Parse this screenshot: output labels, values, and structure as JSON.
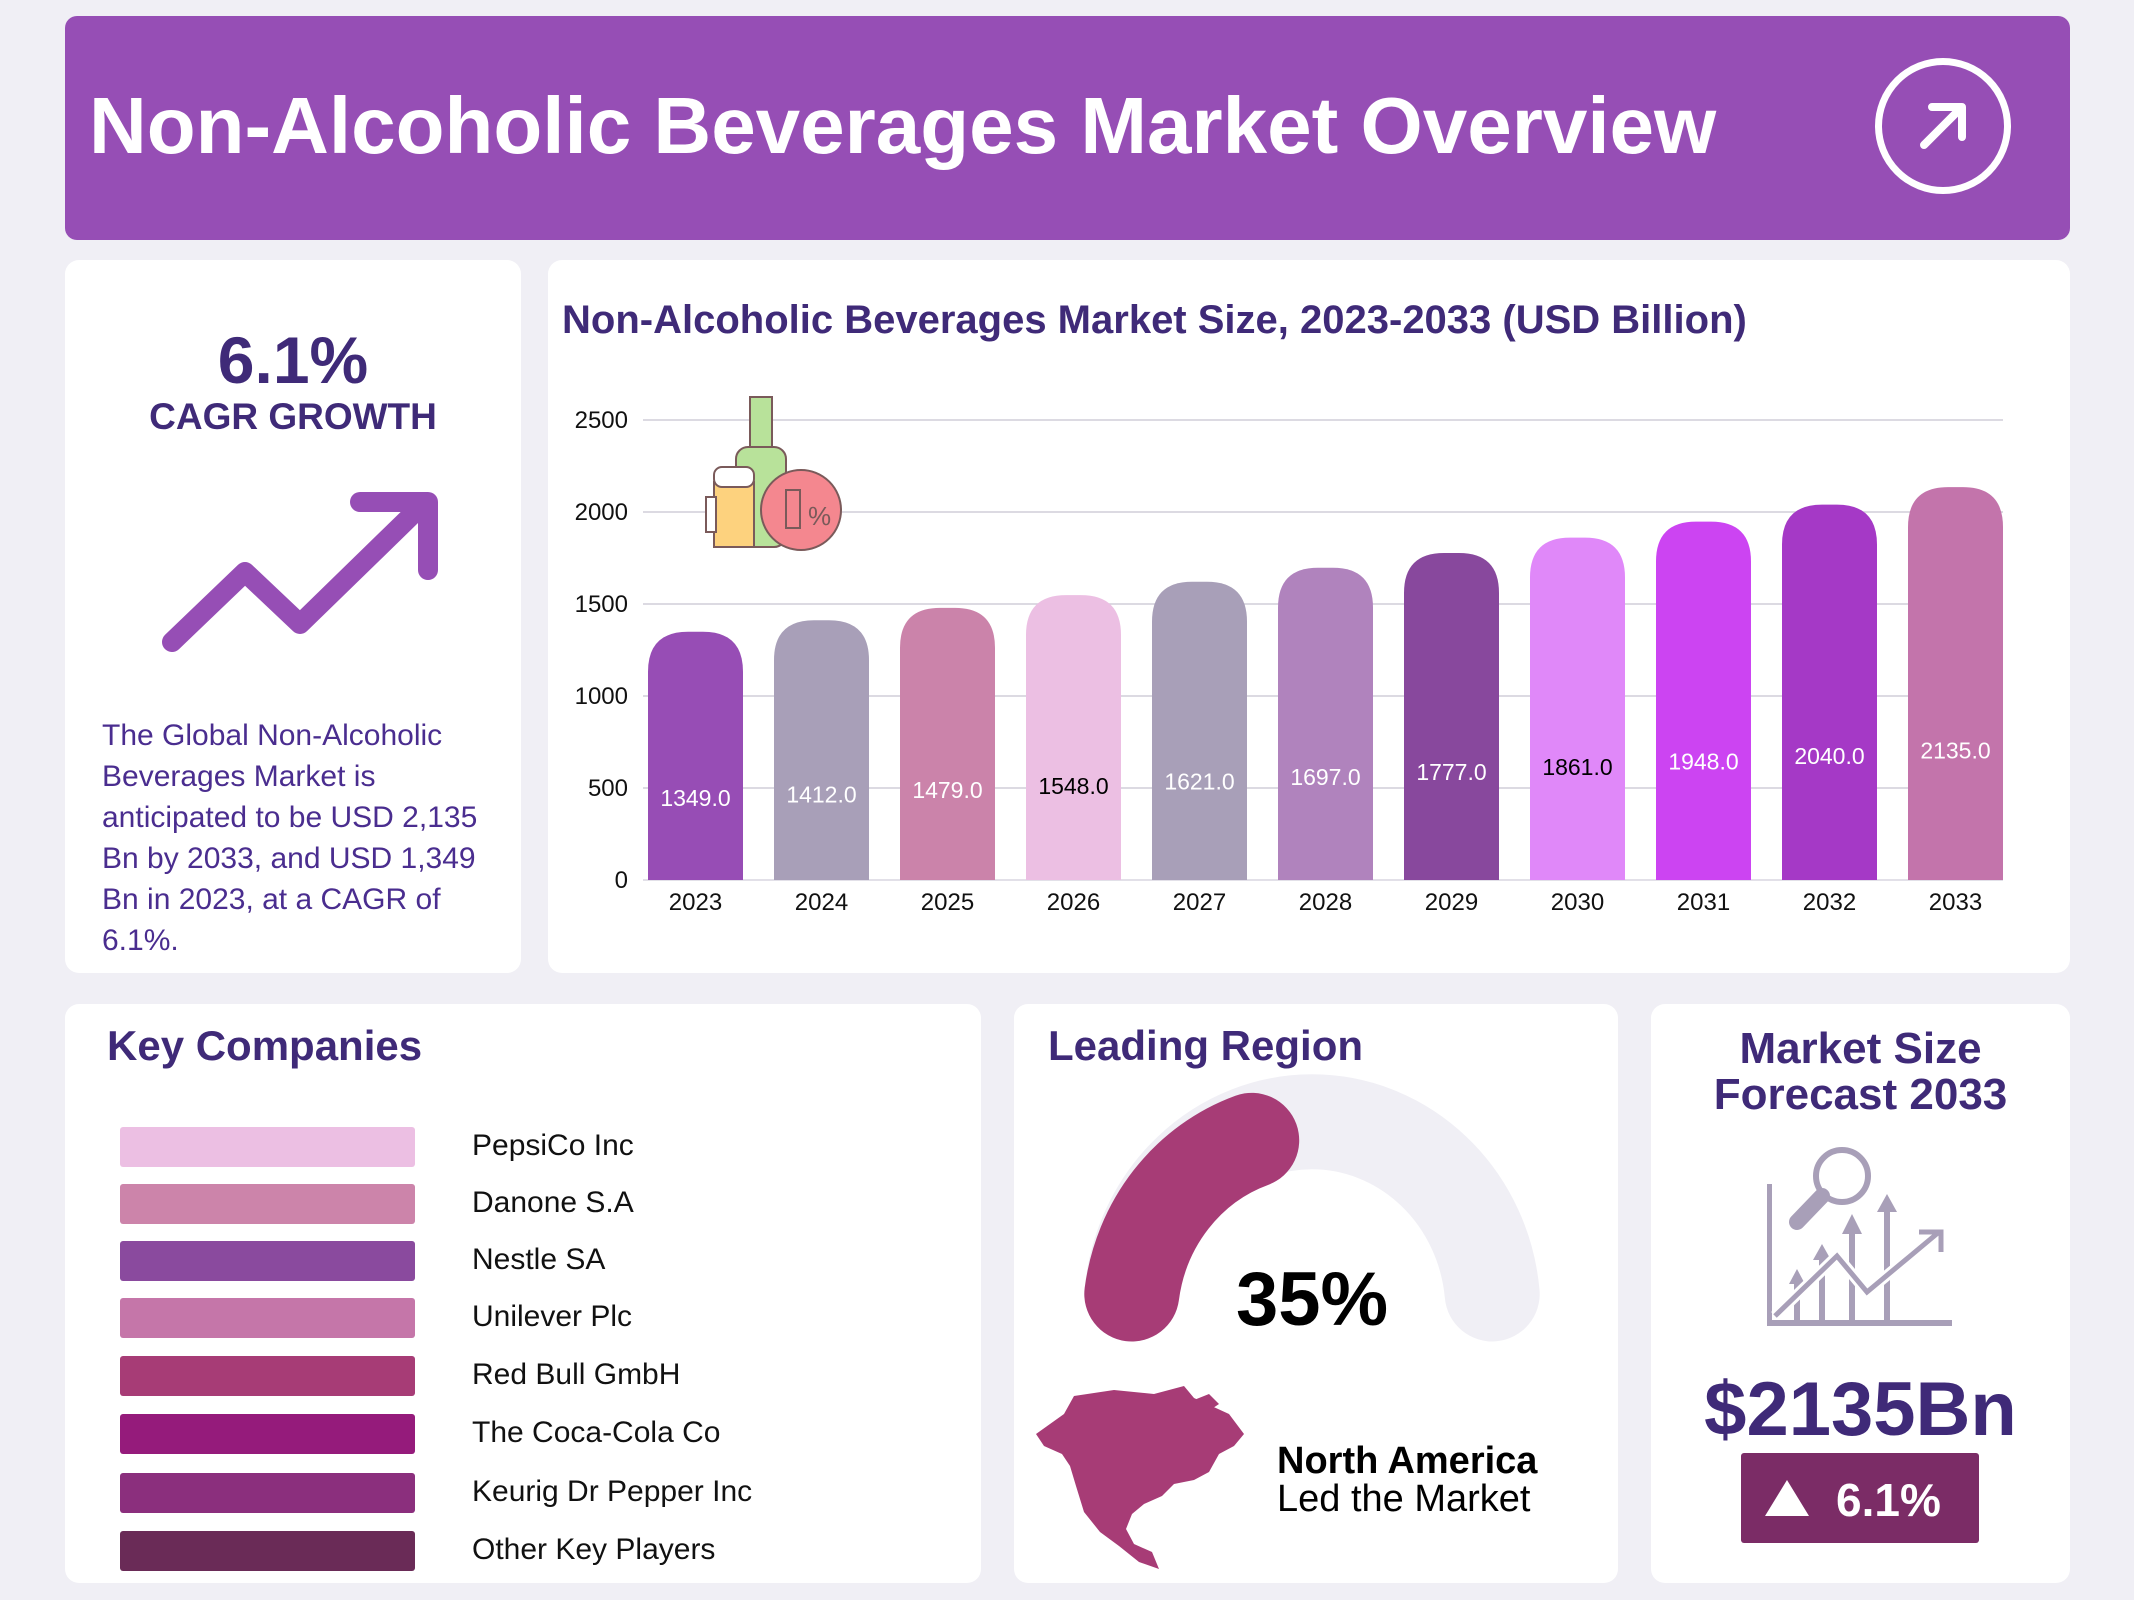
{
  "header": {
    "title": "Non-Alcoholic Beverages Market Overview",
    "icon": "arrow-up-right-circle-icon"
  },
  "cagr": {
    "value": "6.1%",
    "label": "CAGR GROWTH",
    "icon": "trend-up-arrow-icon",
    "description": "The Global Non-Alcoholic Beverages Market is anticipated to be USD 2,135 Bn by 2033, and USD 1,349 Bn in 2023, at a CAGR of 6.1%."
  },
  "chart_data": {
    "type": "bar",
    "title": "Non-Alcoholic Beverages Market Size, 2023-2033 (USD Billion)",
    "categories": [
      "2023",
      "2024",
      "2025",
      "2026",
      "2027",
      "2028",
      "2029",
      "2030",
      "2031",
      "2032",
      "2033"
    ],
    "values": [
      1349.0,
      1412.0,
      1479.0,
      1548.0,
      1621.0,
      1697.0,
      1777.0,
      1861.0,
      1948.0,
      2040.0,
      2135.0
    ],
    "data_labels": [
      "1349.0",
      "1412.0",
      "1479.0",
      "1548.0",
      "1621.0",
      "1697.0",
      "1777.0",
      "1861.0",
      "1948.0",
      "2040.0",
      "2135.0"
    ],
    "colors": [
      "#974db5",
      "#a89fb8",
      "#cb83aa",
      "#ecbfe3",
      "#a89fb8",
      "#b083bd",
      "#88489d",
      "#e088f9",
      "#cc44f2",
      "#a539c6",
      "#c374ab"
    ],
    "label_colors": [
      "#ffffff",
      "#ffffff",
      "#ffffff",
      "#000000",
      "#ffffff",
      "#ffffff",
      "#ffffff",
      "#000000",
      "#ffffff",
      "#ffffff",
      "#ffffff"
    ],
    "yticks": [
      "0",
      "500",
      "1000",
      "1500",
      "2000",
      "2500"
    ],
    "ylim": [
      0,
      2500
    ],
    "grid": true,
    "xlabel": "",
    "ylabel": "",
    "icon": "beverages-zero-percent-icon"
  },
  "companies": {
    "title": "Key Companies",
    "items": [
      {
        "name": "PepsiCo Inc",
        "color": "#ecbfe3"
      },
      {
        "name": "Danone S.A",
        "color": "#cc84aa"
      },
      {
        "name": "Nestle SA",
        "color": "#8a4a9e"
      },
      {
        "name": "Unilever Plc",
        "color": "#c576a9"
      },
      {
        "name": "Red Bull GmbH",
        "color": "#a73c76"
      },
      {
        "name": "The Coca-Cola Co",
        "color": "#951b7b"
      },
      {
        "name": "Keurig Dr Pepper Inc",
        "color": "#8b2f7d"
      },
      {
        "name": "Other Key Players",
        "color": "#6a2b57"
      }
    ]
  },
  "region": {
    "title": "Leading Region",
    "percent": "35%",
    "share": 35,
    "name": "North America",
    "subtitle": "Led the Market",
    "color": "#a73c76",
    "icon": "north-america-map-icon"
  },
  "forecast": {
    "title_line1": "Market Size",
    "title_line2": "Forecast 2033",
    "value": "$2135Bn",
    "growth": "6.1%",
    "icon": "market-analysis-chart-icon",
    "badge_color": "#7b2c66"
  }
}
